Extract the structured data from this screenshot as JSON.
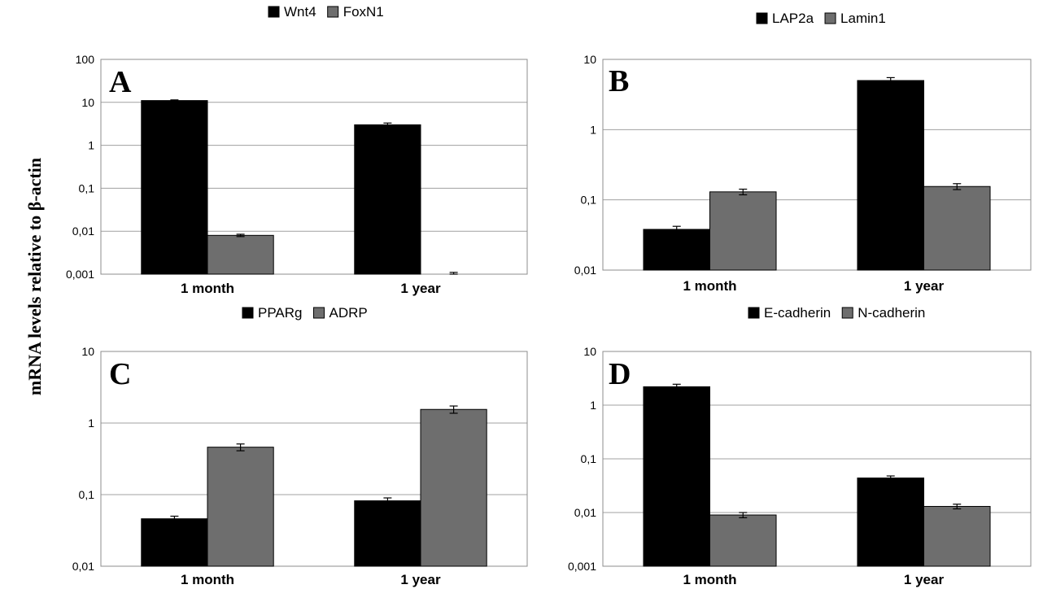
{
  "figure": {
    "ylabel": "mRNA levels relative to β-actin"
  },
  "colors": {
    "series_black": "#000000",
    "series_gray": "#6e6e6e"
  },
  "chart_data": [
    {
      "type": "bar",
      "panel_label": "A",
      "y_scale": "log",
      "ylim": [
        0.001,
        100
      ],
      "ticks": [
        "0,001",
        "0,01",
        "0,1",
        "1",
        "10",
        "100"
      ],
      "categories": [
        "1 month",
        "1 year"
      ],
      "legend": "top",
      "grid": true,
      "series": [
        {
          "name": "Wnt4",
          "color": "#000000",
          "values": [
            11,
            3.0
          ],
          "errors": [
            0.4,
            0.3
          ]
        },
        {
          "name": "FoxN1",
          "color": "#6e6e6e",
          "values": [
            0.008,
            0.001
          ],
          "errors": [
            0.0005,
            0.0001
          ]
        }
      ]
    },
    {
      "type": "bar",
      "panel_label": "B",
      "y_scale": "log",
      "ylim": [
        0.01,
        10
      ],
      "ticks": [
        "0,01",
        "0,1",
        "1",
        "10"
      ],
      "categories": [
        "1 month",
        "1 year"
      ],
      "legend": "top",
      "grid": true,
      "series": [
        {
          "name": "LAP2a",
          "color": "#000000",
          "values": [
            0.038,
            5.0
          ],
          "errors": [
            0.004,
            0.5
          ]
        },
        {
          "name": "Lamin1",
          "color": "#6e6e6e",
          "values": [
            0.13,
            0.155
          ],
          "errors": [
            0.012,
            0.015
          ]
        }
      ]
    },
    {
      "type": "bar",
      "panel_label": "C",
      "y_scale": "log",
      "ylim": [
        0.01,
        10
      ],
      "ticks": [
        "0,01",
        "0,1",
        "1",
        "10"
      ],
      "categories": [
        "1 month",
        "1 year"
      ],
      "legend": "top",
      "grid": true,
      "series": [
        {
          "name": "PPARg",
          "color": "#000000",
          "values": [
            0.046,
            0.082
          ],
          "errors": [
            0.004,
            0.008
          ]
        },
        {
          "name": "ADRP",
          "color": "#6e6e6e",
          "values": [
            0.46,
            1.55
          ],
          "errors": [
            0.05,
            0.18
          ]
        }
      ]
    },
    {
      "type": "bar",
      "panel_label": "D",
      "y_scale": "log",
      "ylim": [
        0.001,
        10
      ],
      "ticks": [
        "0,001",
        "0,01",
        "0,1",
        "1",
        "10"
      ],
      "categories": [
        "1 month",
        "1 year"
      ],
      "legend": "top",
      "grid": true,
      "series": [
        {
          "name": "E-cadherin",
          "color": "#000000",
          "values": [
            2.2,
            0.044
          ],
          "errors": [
            0.25,
            0.004
          ]
        },
        {
          "name": "N-cadherin",
          "color": "#6e6e6e",
          "values": [
            0.009,
            0.013
          ],
          "errors": [
            0.001,
            0.0013
          ]
        }
      ]
    }
  ]
}
